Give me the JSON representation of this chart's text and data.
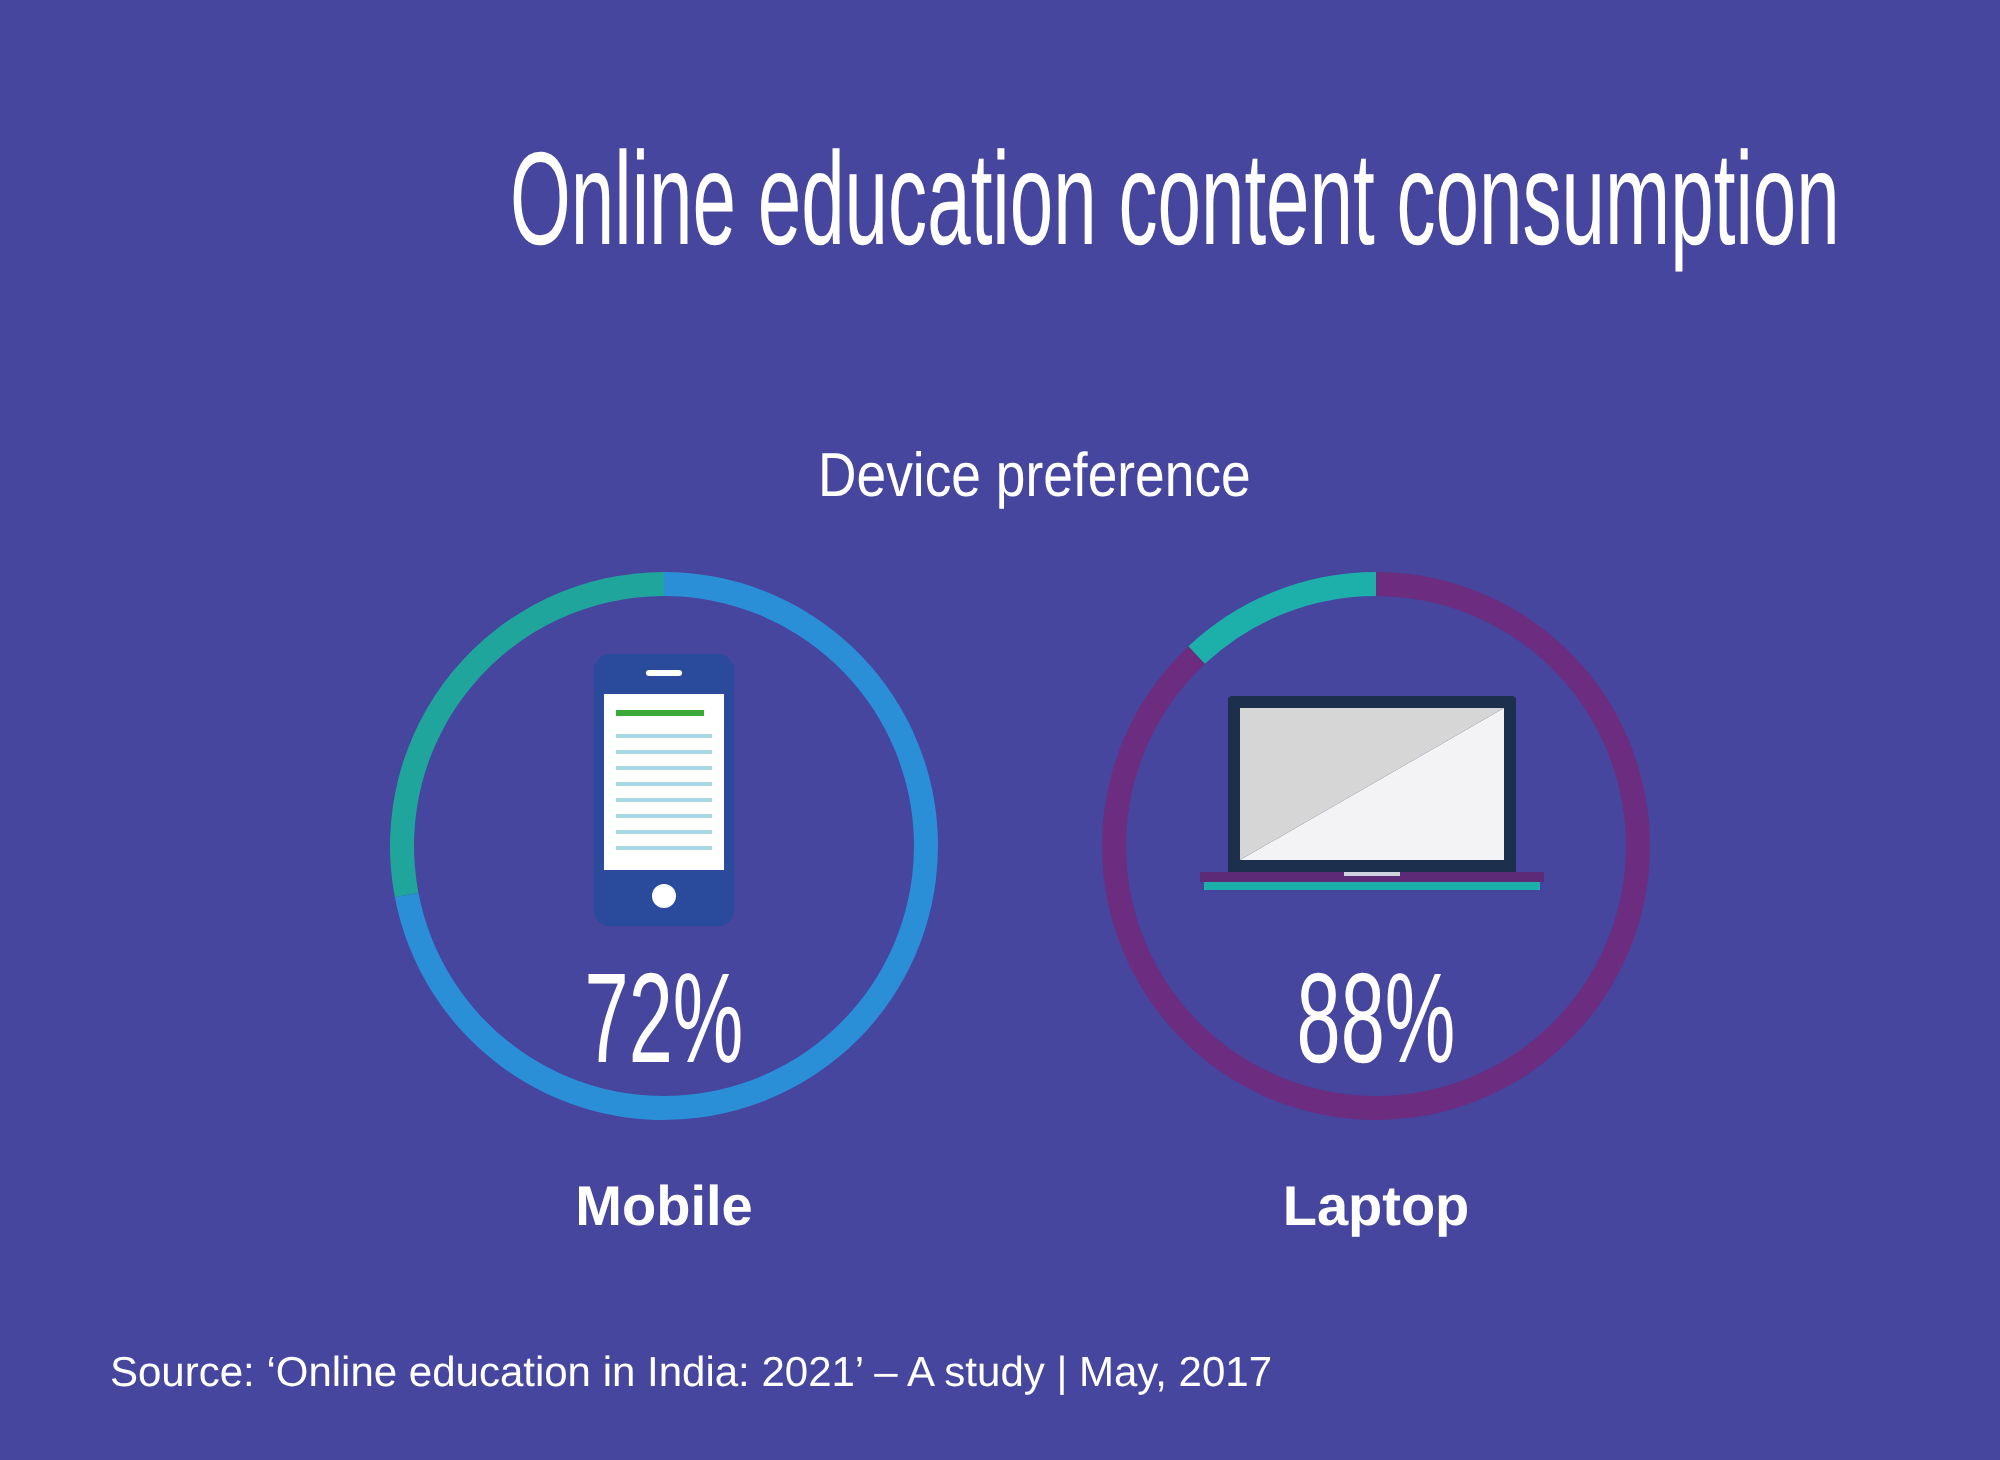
{
  "chart_data": [
    {
      "type": "donut",
      "title": "Online education content consumption",
      "subtitle": "Device preference",
      "categories": [
        "Mobile",
        null
      ],
      "values": [
        72,
        28
      ],
      "colors": [
        "#2b8fd8",
        "#20a59c"
      ],
      "value_labels": [
        "72%",
        null
      ],
      "annotations": [
        "Source: ‘Online education in India: 2021’ – A study | May, 2017"
      ]
    },
    {
      "type": "donut",
      "categories": [
        "Laptop",
        null
      ],
      "values": [
        88,
        12
      ],
      "colors": [
        "#6c2c7f",
        "#1db0ab"
      ],
      "value_labels": [
        "88%",
        null
      ]
    }
  ]
}
